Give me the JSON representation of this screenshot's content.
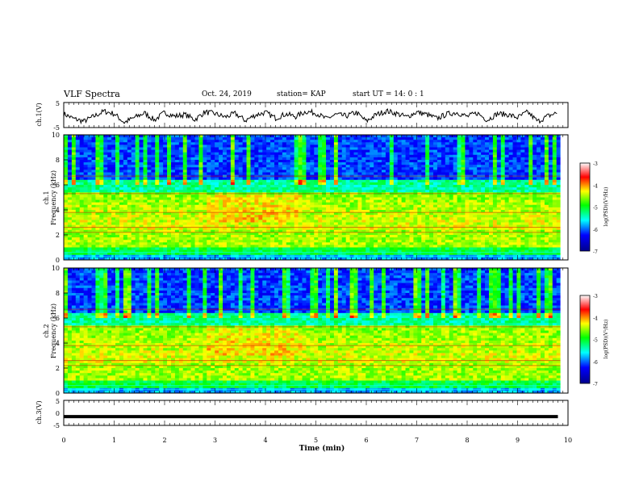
{
  "header": {
    "title": "VLF Spectra",
    "date": "Oct. 24, 2019",
    "station": "station= KAP",
    "start": "start  UT =   14: 0  : 1"
  },
  "chart_data": [
    {
      "type": "line",
      "ylabel": "ch.1(V)",
      "ylim": [
        -5,
        5
      ],
      "yticks": [
        "5",
        "-5"
      ],
      "xlim": [
        0,
        10
      ],
      "description_of_values": "noisy waveform",
      "x": [
        0,
        0.2,
        0.4,
        0.6,
        0.8,
        1.0,
        1.2,
        1.4,
        1.6,
        1.8,
        2.0,
        2.2,
        2.4,
        2.6,
        2.8,
        3.0,
        3.2,
        3.4,
        3.6,
        3.8,
        4.0,
        4.2,
        4.4,
        4.6,
        4.8,
        5.0,
        5.2,
        5.4,
        5.6,
        5.8,
        6.0,
        6.2,
        6.4,
        6.6,
        6.8,
        7.0,
        7.2,
        7.4,
        7.6,
        7.8,
        8.0,
        8.2,
        8.4,
        8.6,
        8.8,
        9.0,
        9.2,
        9.4,
        9.6,
        9.8
      ],
      "y": [
        0.5,
        -1.5,
        -2.5,
        -0.5,
        1.5,
        0.5,
        -3.0,
        -1.0,
        0.8,
        -2.0,
        1.0,
        -0.5,
        0.2,
        -1.8,
        1.2,
        0.5,
        -0.8,
        0.6,
        -2.2,
        0.0,
        1.0,
        -1.2,
        0.4,
        -0.6,
        1.4,
        0.8,
        -1.5,
        0.2,
        -0.4,
        1.0,
        -2.5,
        0.2,
        1.6,
        0.6,
        -0.8,
        1.2,
        0.2,
        -1.4,
        0.4,
        1.0,
        -0.6,
        0.8,
        -2.0,
        0.5,
        0.2,
        -1.0,
        1.2,
        -2.6,
        -0.4,
        1.0
      ]
    },
    {
      "type": "heatmap",
      "ylabel": "ch.1\nFrequency (kHz)",
      "ylim": [
        0,
        10
      ],
      "yticks": [
        "0",
        "2",
        "4",
        "6",
        "8",
        "10"
      ],
      "xlim": [
        0,
        10
      ],
      "colorbar": {
        "label": "log(PSD)(V²/Hz)",
        "range": [
          -7,
          -3
        ],
        "ticks": [
          "-3",
          "-4",
          "-5",
          "-6",
          "-7"
        ]
      }
    },
    {
      "type": "heatmap",
      "ylabel": "ch.2\nFrequency (kHz)",
      "ylim": [
        0,
        10
      ],
      "yticks": [
        "0",
        "2",
        "4",
        "6",
        "8",
        "10"
      ],
      "xlim": [
        0,
        10
      ],
      "colorbar": {
        "label": "log(PSD)(V²/Hz)",
        "range": [
          -7,
          -3
        ],
        "ticks": [
          "-3",
          "-4",
          "-5",
          "-6",
          "-7"
        ]
      }
    },
    {
      "type": "line",
      "ylabel": "ch.3(V)",
      "ylim": [
        -5,
        5
      ],
      "yticks": [
        "5",
        "0",
        "-5"
      ],
      "xlim": [
        0,
        10
      ],
      "x": [
        0,
        9.8
      ],
      "y": [
        -1.5,
        -1.5
      ]
    }
  ],
  "xaxis": {
    "label": "Time  (min)",
    "ticks": [
      "0",
      "1",
      "2",
      "3",
      "4",
      "5",
      "6",
      "7",
      "8",
      "9",
      "10"
    ]
  }
}
